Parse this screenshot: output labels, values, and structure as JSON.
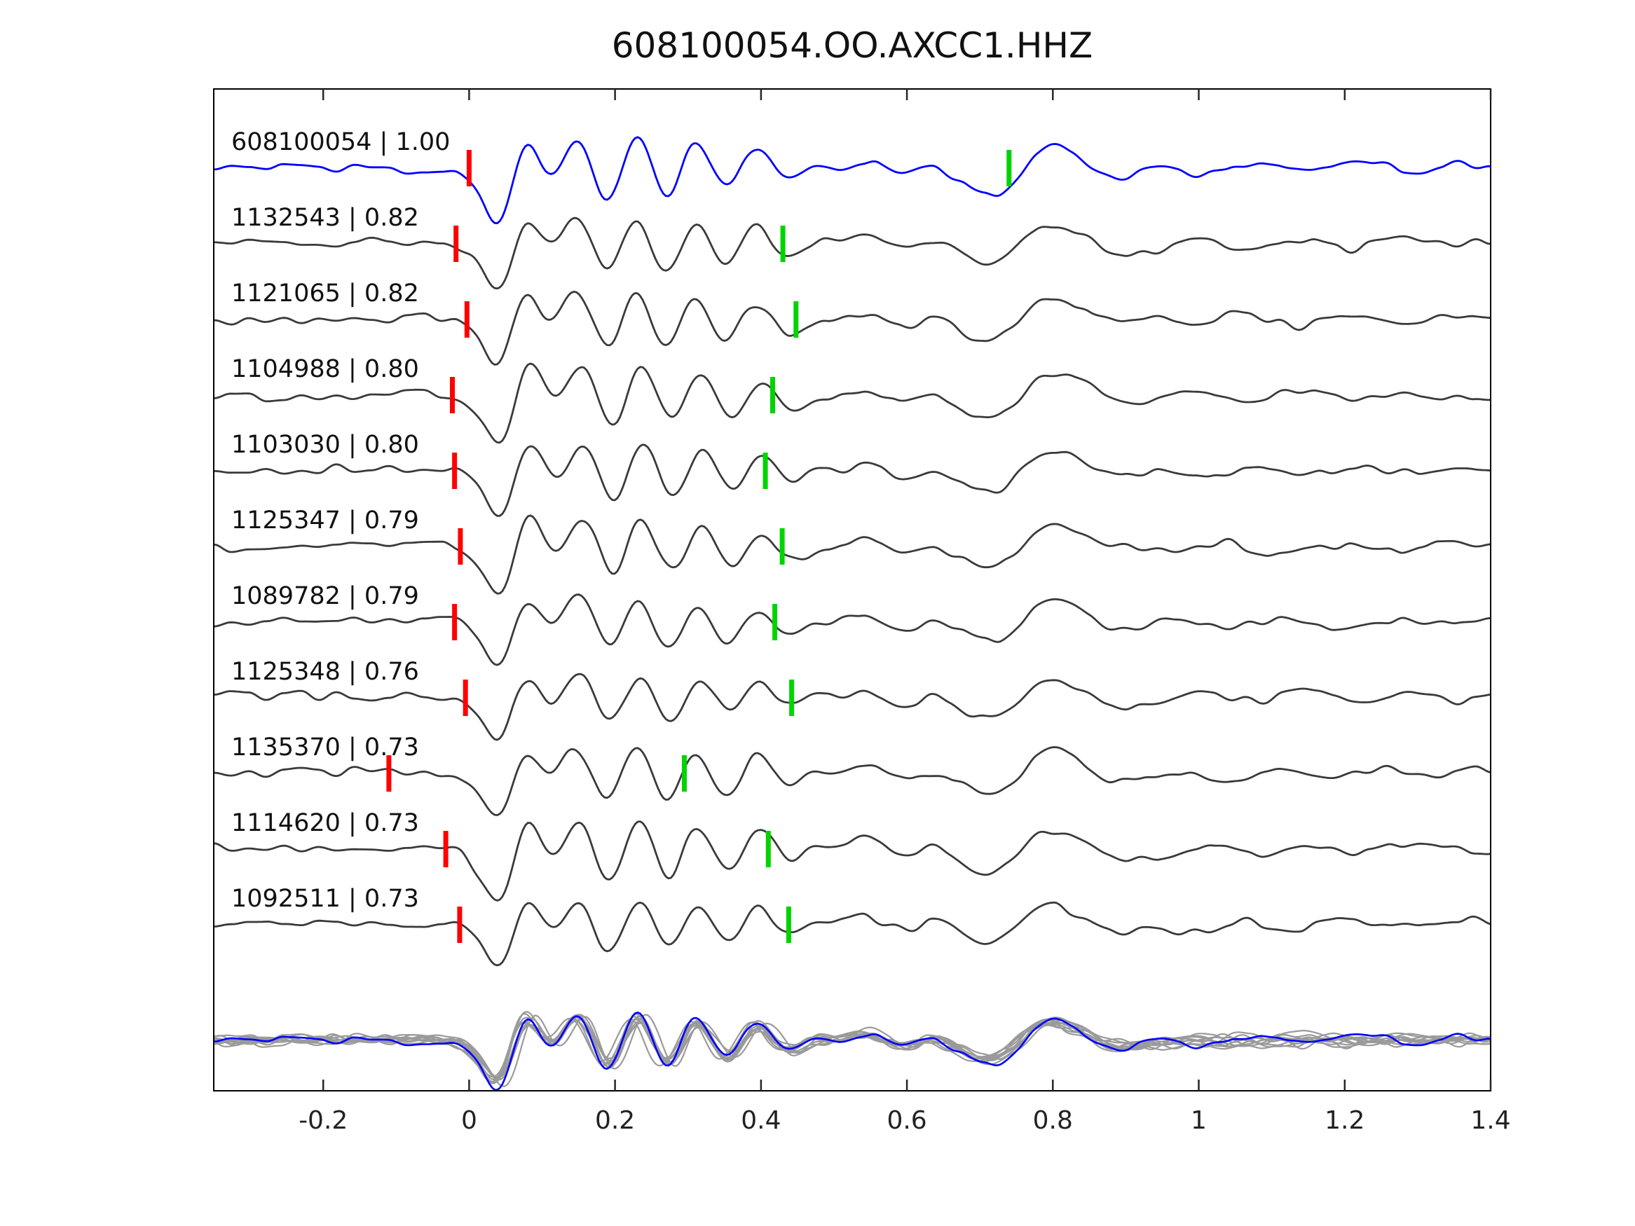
{
  "title": "608100054.OO.AXCC1.HHZ",
  "chart_data": {
    "type": "line",
    "title": "608100054.OO.AXCC1.HHZ",
    "xlabel": "",
    "ylabel": "",
    "xlim": [
      -0.35,
      1.4
    ],
    "xticks": [
      -0.2,
      0,
      0.2,
      0.4,
      0.6,
      0.8,
      1,
      1.2,
      1.4
    ],
    "xtick_labels": [
      "-0.2",
      "0",
      "0.2",
      "0.4",
      "0.6",
      "0.8",
      "1",
      "1.2",
      "1.4"
    ],
    "grid": false,
    "legend": "none",
    "colors": {
      "template_trace": "#0000ff",
      "match_trace": "#3a3a3a",
      "overlay_trace": "#9a9a9a",
      "red_pick": "#ff0000",
      "green_pick": "#00d400",
      "axis": "#262626"
    },
    "traces": [
      {
        "label": "608100054 | 1.00",
        "event_id": "608100054",
        "correlation": 1.0,
        "is_template": true,
        "red_pick_x": 0.0,
        "green_pick_x": 0.74
      },
      {
        "label": "1132543 | 0.82",
        "event_id": "1132543",
        "correlation": 0.82,
        "is_template": false,
        "red_pick_x": -0.018,
        "green_pick_x": 0.43
      },
      {
        "label": "1121065 | 0.82",
        "event_id": "1121065",
        "correlation": 0.82,
        "is_template": false,
        "red_pick_x": -0.003,
        "green_pick_x": 0.448
      },
      {
        "label": "1104988 | 0.80",
        "event_id": "1104988",
        "correlation": 0.8,
        "is_template": false,
        "red_pick_x": -0.023,
        "green_pick_x": 0.416
      },
      {
        "label": "1103030 | 0.80",
        "event_id": "1103030",
        "correlation": 0.8,
        "is_template": false,
        "red_pick_x": -0.02,
        "green_pick_x": 0.406
      },
      {
        "label": "1125347 | 0.79",
        "event_id": "1125347",
        "correlation": 0.79,
        "is_template": false,
        "red_pick_x": -0.012,
        "green_pick_x": 0.429
      },
      {
        "label": "1089782 | 0.79",
        "event_id": "1089782",
        "correlation": 0.79,
        "is_template": false,
        "red_pick_x": -0.02,
        "green_pick_x": 0.419
      },
      {
        "label": "1125348 | 0.76",
        "event_id": "1125348",
        "correlation": 0.76,
        "is_template": false,
        "red_pick_x": -0.005,
        "green_pick_x": 0.442
      },
      {
        "label": "1135370 | 0.73",
        "event_id": "1135370",
        "correlation": 0.73,
        "is_template": false,
        "red_pick_x": -0.11,
        "green_pick_x": 0.295
      },
      {
        "label": "1114620 | 0.73",
        "event_id": "1114620",
        "correlation": 0.73,
        "is_template": false,
        "red_pick_x": -0.032,
        "green_pick_x": 0.41
      },
      {
        "label": "1092511 | 0.73",
        "event_id": "1092511",
        "correlation": 0.73,
        "is_template": false,
        "red_pick_x": -0.013,
        "green_pick_x": 0.438
      }
    ],
    "has_overlay_row": true
  }
}
